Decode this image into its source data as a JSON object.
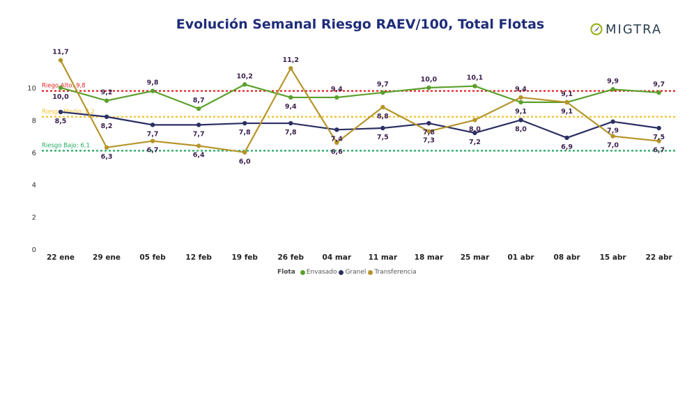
{
  "header": {
    "title": "Evolución Semanal Riesgo RAEV/100, Total Flotas",
    "logo_text": "MIGTRA"
  },
  "chart_data": {
    "type": "line",
    "categories": [
      "22 ene",
      "29 ene",
      "05 feb",
      "12 feb",
      "19 feb",
      "26 feb",
      "04 mar",
      "11 mar",
      "18 mar",
      "25 mar",
      "01 abr",
      "08 abr",
      "15 abr",
      "22 abr"
    ],
    "ylim": [
      0,
      12
    ],
    "yticks": [
      0,
      2,
      4,
      6,
      8,
      10
    ],
    "series": [
      {
        "name": "Envasado",
        "color": "#5aa02c",
        "values": [
          10.0,
          9.2,
          9.8,
          8.7,
          10.2,
          9.4,
          9.4,
          9.7,
          10.0,
          10.1,
          9.1,
          9.1,
          9.9,
          9.7
        ],
        "labels": [
          "10,0",
          "9,2",
          "9,8",
          "8,7",
          "10,2",
          "9,4",
          "9,4",
          "9,7",
          "10,0",
          "10,1",
          "9,1",
          "9,1",
          "9,9",
          "9,7"
        ]
      },
      {
        "name": "Granel",
        "color": "#2b2f63",
        "values": [
          8.5,
          8.2,
          7.7,
          7.7,
          7.8,
          7.8,
          7.4,
          7.5,
          7.8,
          7.2,
          8.0,
          6.9,
          7.9,
          7.5
        ],
        "labels": [
          "8,5",
          "8,2",
          "7,7",
          "7,7",
          "7,8",
          "7,8",
          "7,4",
          "7,5",
          "7,8",
          "7,2",
          "8,0",
          "6,9",
          "7,9",
          "7,5"
        ]
      },
      {
        "name": "Transferencia",
        "color": "#b5952a",
        "values": [
          11.7,
          6.3,
          6.7,
          6.4,
          6.0,
          11.2,
          6.6,
          8.8,
          7.3,
          8.0,
          9.4,
          9.1,
          7.0,
          6.7
        ],
        "labels": [
          "11,7",
          "6,3",
          "6,7",
          "6,4",
          "6,0",
          "11,2",
          "6,6",
          "8,8",
          "7,3",
          "8,0",
          "9,4",
          "9,1",
          "7,0",
          "6,7"
        ]
      }
    ],
    "reference_lines": [
      {
        "label": "Riego Alto: 9,8",
        "value": 9.8,
        "color": "#e41e1e"
      },
      {
        "label": "Riesgo Medio: 8,2",
        "value": 8.2,
        "color": "#f2c12e"
      },
      {
        "label": "Riesgo Bajo: 6,1",
        "value": 6.1,
        "color": "#22a861"
      }
    ],
    "legend": {
      "title": "Flota",
      "position": "bottom"
    }
  }
}
